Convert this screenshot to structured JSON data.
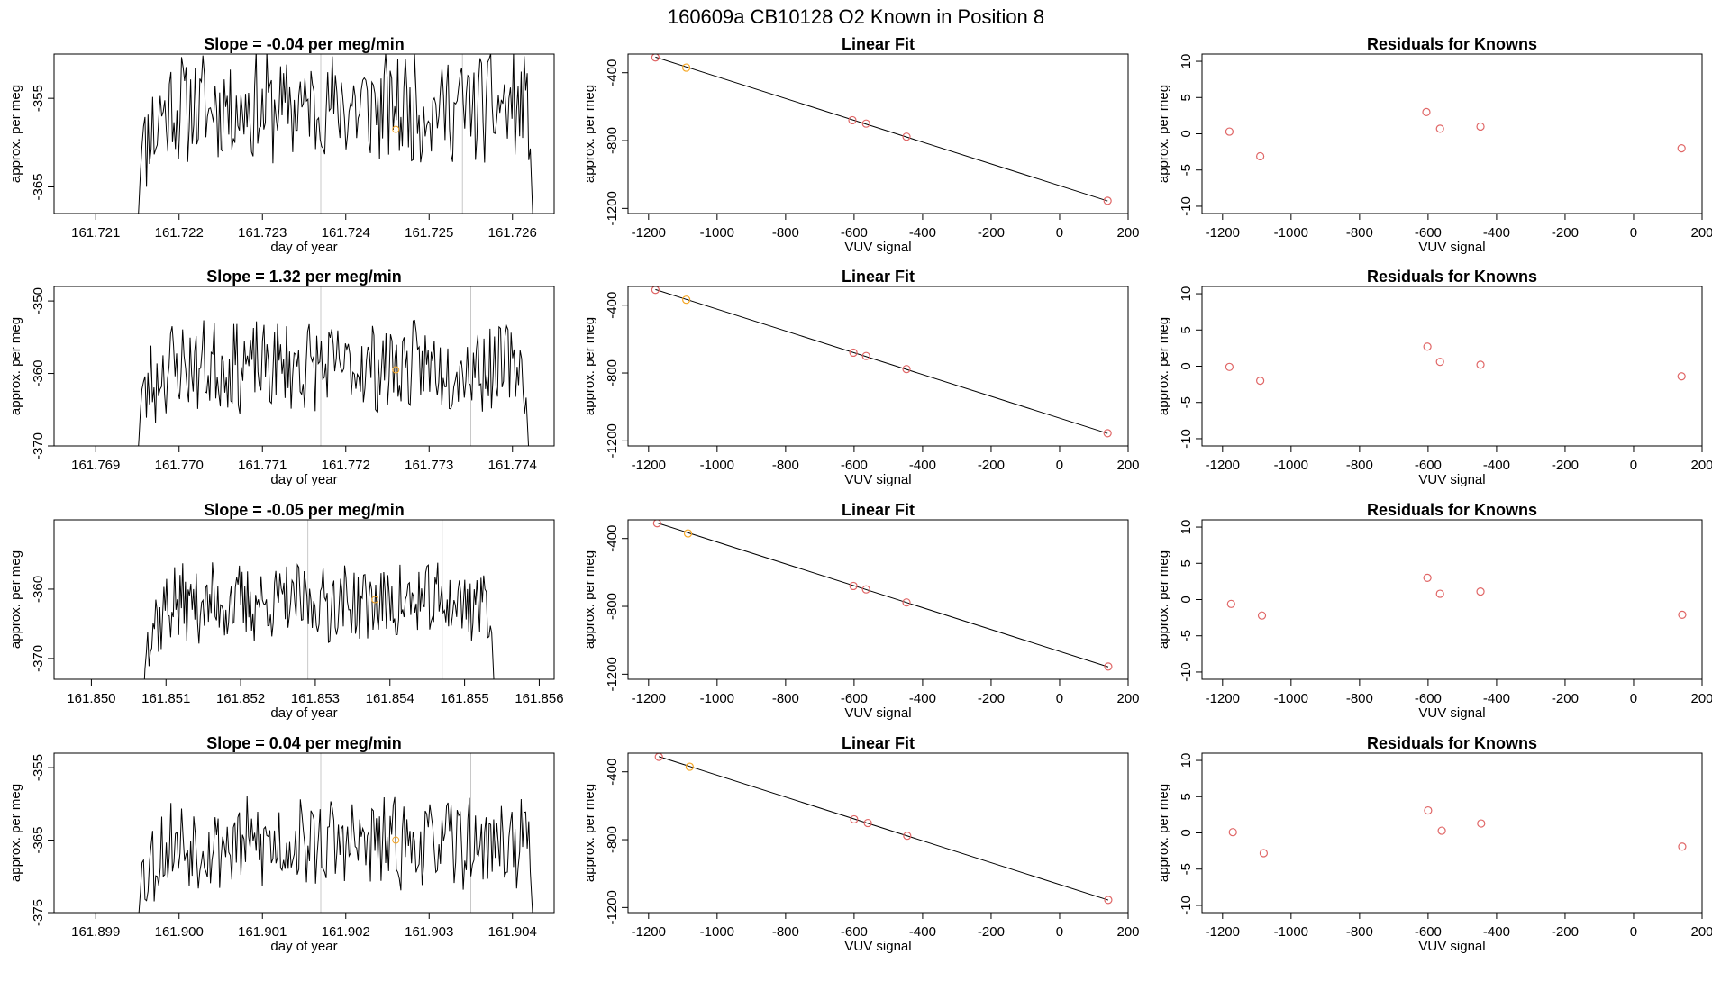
{
  "header": {
    "title": "160609a      CB10128    O2 Known in Position  8"
  },
  "chart_data": [
    {
      "type": "line",
      "row": 1,
      "title": "Slope =  -0.04  per meg/min",
      "xlabel": "day of year",
      "ylabel": "approx. per meg",
      "xlim": [
        161.7205,
        161.7265
      ],
      "ylim": [
        -368,
        -350
      ],
      "xticks": [
        "161.721",
        "161.722",
        "161.723",
        "161.724",
        "161.725",
        "161.726"
      ],
      "yticks": [
        "-355",
        "-365"
      ],
      "ytick_values": [
        -355,
        -365
      ],
      "line_color": "#000000",
      "vlines": [
        161.7237,
        161.7254
      ],
      "vline_color": "#c8c8c8",
      "marker": {
        "x": 161.7246,
        "y": -358.5,
        "color": "#f5a623"
      },
      "trace": {
        "x_start": 161.7215,
        "x_end": 161.72625,
        "seed": 11,
        "mean": -356.0,
        "amp": 5.5,
        "start_y": -370,
        "end_y": -370
      }
    },
    {
      "type": "scatter",
      "row": 1,
      "title": "Linear Fit",
      "xlabel": "VUV signal",
      "ylabel": "approx. per meg",
      "xlim": [
        -1260,
        200
      ],
      "ylim": [
        -1230,
        -290
      ],
      "xticks": [
        "-1200",
        "-1000",
        "-800",
        "-600",
        "-400",
        "-200",
        "0",
        "200"
      ],
      "xtick_values": [
        -1200,
        -1000,
        -800,
        -600,
        -400,
        -200,
        0,
        200
      ],
      "yticks": [
        "-400",
        "-800",
        "-1200"
      ],
      "ytick_values": [
        -400,
        -800,
        -1200
      ],
      "points": [
        {
          "x": -1180,
          "y": -310,
          "color": "#e06666"
        },
        {
          "x": -1090,
          "y": -370,
          "color": "#f5a623"
        },
        {
          "x": -605,
          "y": -680,
          "color": "#e06666"
        },
        {
          "x": -565,
          "y": -700,
          "color": "#e06666"
        },
        {
          "x": -447,
          "y": -777,
          "color": "#e06666"
        },
        {
          "x": 140,
          "y": -1155,
          "color": "#e06666"
        }
      ],
      "fit_line": {
        "x": [
          -1180,
          140
        ],
        "y": [
          -308,
          -1156
        ]
      }
    },
    {
      "type": "scatter",
      "row": 1,
      "title": "Residuals for Knowns",
      "xlabel": "VUV signal",
      "ylabel": "approx. per meg",
      "xlim": [
        -1260,
        200
      ],
      "ylim": [
        -11,
        11
      ],
      "xticks": [
        "-1200",
        "-1000",
        "-800",
        "-600",
        "-400",
        "-200",
        "0",
        "200"
      ],
      "xtick_values": [
        -1200,
        -1000,
        -800,
        -600,
        -400,
        -200,
        0,
        200
      ],
      "yticks": [
        "10",
        "5",
        "0",
        "-5",
        "-10"
      ],
      "ytick_values": [
        10,
        5,
        0,
        -5,
        -10
      ],
      "points": [
        {
          "x": -1180,
          "y": 0.3,
          "color": "#e06666"
        },
        {
          "x": -1090,
          "y": -3.1,
          "color": "#e06666"
        },
        {
          "x": -605,
          "y": 3.0,
          "color": "#e06666"
        },
        {
          "x": -565,
          "y": 0.7,
          "color": "#e06666"
        },
        {
          "x": -447,
          "y": 1.0,
          "color": "#e06666"
        },
        {
          "x": 140,
          "y": -2.0,
          "color": "#e06666"
        }
      ]
    },
    {
      "type": "line",
      "row": 2,
      "title": "Slope =  1.32  per meg/min",
      "xlabel": "day of year",
      "ylabel": "approx. per meg",
      "xlim": [
        161.7685,
        161.7745
      ],
      "ylim": [
        -370,
        -348
      ],
      "xticks": [
        "161.769",
        "161.770",
        "161.771",
        "161.772",
        "161.773",
        "161.774"
      ],
      "yticks": [
        "-350",
        "-360",
        "-370"
      ],
      "ytick_values": [
        -350,
        -360,
        -370
      ],
      "line_color": "#000000",
      "vlines": [
        161.7717,
        161.7735
      ],
      "vline_color": "#c8c8c8",
      "marker": {
        "x": 161.7726,
        "y": -359.5,
        "color": "#f5a623"
      },
      "trace": {
        "x_start": 161.7695,
        "x_end": 161.7742,
        "seed": 23,
        "mean": -359.0,
        "amp": 5.5,
        "start_y": -372,
        "end_y": -372
      }
    },
    {
      "type": "scatter",
      "row": 2,
      "title": "Linear Fit",
      "xlabel": "VUV signal",
      "ylabel": "approx. per meg",
      "xlim": [
        -1260,
        200
      ],
      "ylim": [
        -1230,
        -290
      ],
      "xticks": [
        "-1200",
        "-1000",
        "-800",
        "-600",
        "-400",
        "-200",
        "0",
        "200"
      ],
      "xtick_values": [
        -1200,
        -1000,
        -800,
        -600,
        -400,
        -200,
        0,
        200
      ],
      "yticks": [
        "-400",
        "-800",
        "-1200"
      ],
      "ytick_values": [
        -400,
        -800,
        -1200
      ],
      "points": [
        {
          "x": -1180,
          "y": -310,
          "color": "#e06666"
        },
        {
          "x": -1090,
          "y": -368,
          "color": "#f5a623"
        },
        {
          "x": -602,
          "y": -680,
          "color": "#e06666"
        },
        {
          "x": -565,
          "y": -700,
          "color": "#e06666"
        },
        {
          "x": -447,
          "y": -777,
          "color": "#e06666"
        },
        {
          "x": 140,
          "y": -1155,
          "color": "#e06666"
        }
      ],
      "fit_line": {
        "x": [
          -1180,
          140
        ],
        "y": [
          -308,
          -1156
        ]
      }
    },
    {
      "type": "scatter",
      "row": 2,
      "title": "Residuals for Knowns",
      "xlabel": "VUV signal",
      "ylabel": "approx. per meg",
      "xlim": [
        -1260,
        200
      ],
      "ylim": [
        -11,
        11
      ],
      "xticks": [
        "-1200",
        "-1000",
        "-800",
        "-600",
        "-400",
        "-200",
        "0",
        "200"
      ],
      "xtick_values": [
        -1200,
        -1000,
        -800,
        -600,
        -400,
        -200,
        0,
        200
      ],
      "yticks": [
        "10",
        "5",
        "0",
        "-5",
        "-10"
      ],
      "ytick_values": [
        10,
        5,
        0,
        -5,
        -10
      ],
      "points": [
        {
          "x": -1180,
          "y": -0.1,
          "color": "#e06666"
        },
        {
          "x": -1090,
          "y": -2.0,
          "color": "#e06666"
        },
        {
          "x": -602,
          "y": 2.7,
          "color": "#e06666"
        },
        {
          "x": -565,
          "y": 0.6,
          "color": "#e06666"
        },
        {
          "x": -447,
          "y": 0.2,
          "color": "#e06666"
        },
        {
          "x": 140,
          "y": -1.4,
          "color": "#e06666"
        }
      ]
    },
    {
      "type": "line",
      "row": 3,
      "title": "Slope =  -0.05  per meg/min",
      "xlabel": "day of year",
      "ylabel": "approx. per meg",
      "xlim": [
        161.8495,
        161.8562
      ],
      "ylim": [
        -373,
        -350
      ],
      "xticks": [
        "161.850",
        "161.851",
        "161.852",
        "161.853",
        "161.854",
        "161.855",
        "161.856"
      ],
      "yticks": [
        "-360",
        "-370"
      ],
      "ytick_values": [
        -360,
        -370
      ],
      "line_color": "#000000",
      "vlines": [
        161.8529,
        161.8547
      ],
      "vline_color": "#c8c8c8",
      "marker": {
        "x": 161.8538,
        "y": -361.5,
        "color": "#f5a623"
      },
      "trace": {
        "x_start": 161.8507,
        "x_end": 161.8554,
        "seed": 37,
        "mean": -362.0,
        "amp": 5.0,
        "start_y": -375,
        "end_y": -375
      }
    },
    {
      "type": "scatter",
      "row": 3,
      "title": "Linear Fit",
      "xlabel": "VUV signal",
      "ylabel": "approx. per meg",
      "xlim": [
        -1260,
        200
      ],
      "ylim": [
        -1230,
        -290
      ],
      "xticks": [
        "-1200",
        "-1000",
        "-800",
        "-600",
        "-400",
        "-200",
        "0",
        "200"
      ],
      "xtick_values": [
        -1200,
        -1000,
        -800,
        -600,
        -400,
        -200,
        0,
        200
      ],
      "yticks": [
        "-400",
        "-800",
        "-1200"
      ],
      "ytick_values": [
        -400,
        -800,
        -1200
      ],
      "points": [
        {
          "x": -1175,
          "y": -310,
          "color": "#e06666"
        },
        {
          "x": -1085,
          "y": -370,
          "color": "#f5a623"
        },
        {
          "x": -602,
          "y": -680,
          "color": "#e06666"
        },
        {
          "x": -565,
          "y": -700,
          "color": "#e06666"
        },
        {
          "x": -447,
          "y": -777,
          "color": "#e06666"
        },
        {
          "x": 142,
          "y": -1155,
          "color": "#e06666"
        }
      ],
      "fit_line": {
        "x": [
          -1175,
          142
        ],
        "y": [
          -308,
          -1157
        ]
      }
    },
    {
      "type": "scatter",
      "row": 3,
      "title": "Residuals for Knowns",
      "xlabel": "VUV signal",
      "ylabel": "approx. per meg",
      "xlim": [
        -1260,
        200
      ],
      "ylim": [
        -11,
        11
      ],
      "xticks": [
        "-1200",
        "-1000",
        "-800",
        "-600",
        "-400",
        "-200",
        "0",
        "200"
      ],
      "xtick_values": [
        -1200,
        -1000,
        -800,
        -600,
        -400,
        -200,
        0,
        200
      ],
      "yticks": [
        "10",
        "5",
        "0",
        "-5",
        "-10"
      ],
      "ytick_values": [
        10,
        5,
        0,
        -5,
        -10
      ],
      "points": [
        {
          "x": -1175,
          "y": -0.6,
          "color": "#e06666"
        },
        {
          "x": -1085,
          "y": -2.2,
          "color": "#e06666"
        },
        {
          "x": -602,
          "y": 3.0,
          "color": "#e06666"
        },
        {
          "x": -565,
          "y": 0.8,
          "color": "#e06666"
        },
        {
          "x": -447,
          "y": 1.1,
          "color": "#e06666"
        },
        {
          "x": 142,
          "y": -2.1,
          "color": "#e06666"
        }
      ]
    },
    {
      "type": "line",
      "row": 4,
      "title": "Slope =  0.04  per meg/min",
      "xlabel": "day of year",
      "ylabel": "approx. per meg",
      "xlim": [
        161.8985,
        161.9045
      ],
      "ylim": [
        -375,
        -353
      ],
      "xticks": [
        "161.899",
        "161.900",
        "161.901",
        "161.902",
        "161.903",
        "161.904"
      ],
      "yticks": [
        "-355",
        "-365",
        "-375"
      ],
      "ytick_values": [
        -355,
        -365,
        -375
      ],
      "line_color": "#000000",
      "vlines": [
        161.9017,
        161.9035
      ],
      "vline_color": "#c8c8c8",
      "marker": {
        "x": 161.9026,
        "y": -365.0,
        "color": "#f5a623"
      },
      "trace": {
        "x_start": 161.8995,
        "x_end": 161.90425,
        "seed": 53,
        "mean": -365.5,
        "amp": 5.5,
        "start_y": -377,
        "end_y": -377
      }
    },
    {
      "type": "scatter",
      "row": 4,
      "title": "Linear Fit",
      "xlabel": "VUV signal",
      "ylabel": "approx. per meg",
      "xlim": [
        -1260,
        200
      ],
      "ylim": [
        -1230,
        -290
      ],
      "xticks": [
        "-1200",
        "-1000",
        "-800",
        "-600",
        "-400",
        "-200",
        "0",
        "200"
      ],
      "xtick_values": [
        -1200,
        -1000,
        -800,
        -600,
        -400,
        -200,
        0,
        200
      ],
      "yticks": [
        "-400",
        "-800",
        "-1200"
      ],
      "ytick_values": [
        -400,
        -800,
        -1200
      ],
      "points": [
        {
          "x": -1170,
          "y": -312,
          "color": "#e06666"
        },
        {
          "x": -1080,
          "y": -370,
          "color": "#f5a623"
        },
        {
          "x": -600,
          "y": -680,
          "color": "#e06666"
        },
        {
          "x": -560,
          "y": -702,
          "color": "#e06666"
        },
        {
          "x": -445,
          "y": -777,
          "color": "#e06666"
        },
        {
          "x": 142,
          "y": -1155,
          "color": "#e06666"
        }
      ],
      "fit_line": {
        "x": [
          -1170,
          142
        ],
        "y": [
          -310,
          -1156
        ]
      }
    },
    {
      "type": "scatter",
      "row": 4,
      "title": "Residuals for Knowns",
      "xlabel": "VUV signal",
      "ylabel": "approx. per meg",
      "xlim": [
        -1260,
        200
      ],
      "ylim": [
        -11,
        11
      ],
      "xticks": [
        "-1200",
        "-1000",
        "-800",
        "-600",
        "-400",
        "-200",
        "0",
        "200"
      ],
      "xtick_values": [
        -1200,
        -1000,
        -800,
        -600,
        -400,
        -200,
        0,
        200
      ],
      "yticks": [
        "10",
        "5",
        "0",
        "-5",
        "-10"
      ],
      "ytick_values": [
        10,
        5,
        0,
        -5,
        -10
      ],
      "points": [
        {
          "x": -1170,
          "y": 0.1,
          "color": "#e06666"
        },
        {
          "x": -1080,
          "y": -2.8,
          "color": "#e06666"
        },
        {
          "x": -600,
          "y": 3.1,
          "color": "#e06666"
        },
        {
          "x": -560,
          "y": 0.3,
          "color": "#e06666"
        },
        {
          "x": -445,
          "y": 1.3,
          "color": "#e06666"
        },
        {
          "x": 142,
          "y": -1.9,
          "color": "#e06666"
        }
      ]
    }
  ]
}
